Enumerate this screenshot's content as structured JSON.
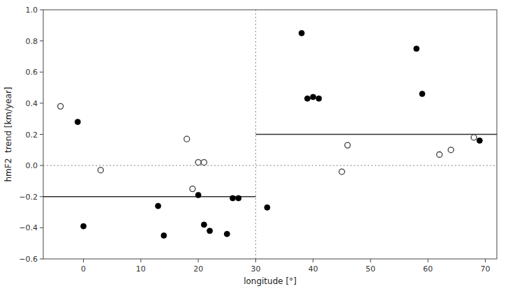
{
  "chart_data": {
    "type": "scatter",
    "xlabel": "longitude [°]",
    "ylabel": "hmF2  trend [km/year]",
    "xlim": [
      -7,
      72
    ],
    "ylim": [
      -0.6,
      1.0
    ],
    "xticks": [
      0,
      10,
      20,
      30,
      40,
      50,
      60,
      70
    ],
    "yticks": [
      {
        "value": -0.6,
        "label": "−0.6"
      },
      {
        "value": -0.4,
        "label": "−0.4"
      },
      {
        "value": -0.2,
        "label": "−0.2"
      },
      {
        "value": 0.0,
        "label": "0.0"
      },
      0.2,
      0.4,
      0.6,
      0.8,
      {
        "value": 1.0,
        "label": "1.0"
      }
    ],
    "grid": false,
    "reference_lines": [
      {
        "y": 0.0,
        "color": "#888888",
        "line_style": "dotted"
      },
      {
        "x": 30,
        "color": "#888888",
        "line_style": "dotted"
      }
    ],
    "series": [
      {
        "type": "line",
        "line_style": "solid",
        "color": "#303030",
        "x": [
          -7,
          30
        ],
        "values": [
          -0.2,
          -0.2
        ]
      },
      {
        "type": "line",
        "line_style": "solid",
        "color": "#303030",
        "x": [
          30,
          72
        ],
        "values": [
          0.2,
          0.2
        ]
      },
      {
        "type": "scatter",
        "marker": "circle",
        "color": "#000000",
        "x": [
          -1,
          0,
          13,
          14,
          20,
          21,
          22,
          25,
          26,
          27,
          32,
          38,
          39,
          40,
          41,
          58,
          59,
          69
        ],
        "values": [
          0.28,
          -0.39,
          -0.26,
          -0.45,
          -0.19,
          -0.38,
          -0.42,
          -0.44,
          -0.21,
          -0.21,
          -0.27,
          0.85,
          0.43,
          0.44,
          0.43,
          0.75,
          0.46,
          0.16
        ]
      },
      {
        "type": "scatter",
        "marker": "open-circle",
        "color": "#404040",
        "x": [
          -4,
          3,
          18,
          19,
          20,
          21,
          45,
          46,
          62,
          64,
          68
        ],
        "values": [
          0.38,
          -0.03,
          0.17,
          -0.15,
          0.02,
          0.02,
          -0.04,
          0.13,
          0.07,
          0.1,
          0.18
        ]
      }
    ]
  }
}
